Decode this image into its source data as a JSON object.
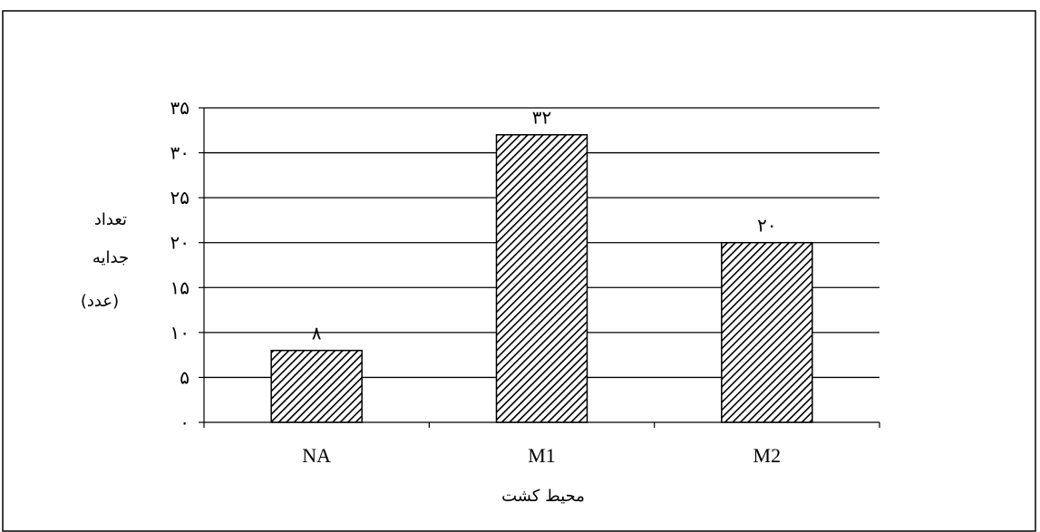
{
  "chart_data": {
    "type": "bar",
    "categories": [
      "NA",
      "M1",
      "M2"
    ],
    "values": [
      8,
      32,
      20
    ],
    "value_labels": [
      "۸",
      "۳۲",
      "۲۰"
    ],
    "y_tick_values": [
      0,
      5,
      10,
      15,
      20,
      25,
      30,
      35
    ],
    "y_tick_labels": [
      "۰",
      "۵",
      "۱۰",
      "۱۵",
      "۲۰",
      "۲۵",
      "۳۰",
      "۳۵"
    ],
    "ylim": [
      0,
      35
    ],
    "xlabel": "محیط کشت",
    "ylabel_lines": [
      "تعداد",
      "جدایه",
      "(عدد)"
    ],
    "grid": true,
    "bar_pattern": "diagonal-hatch",
    "legend": "none"
  }
}
